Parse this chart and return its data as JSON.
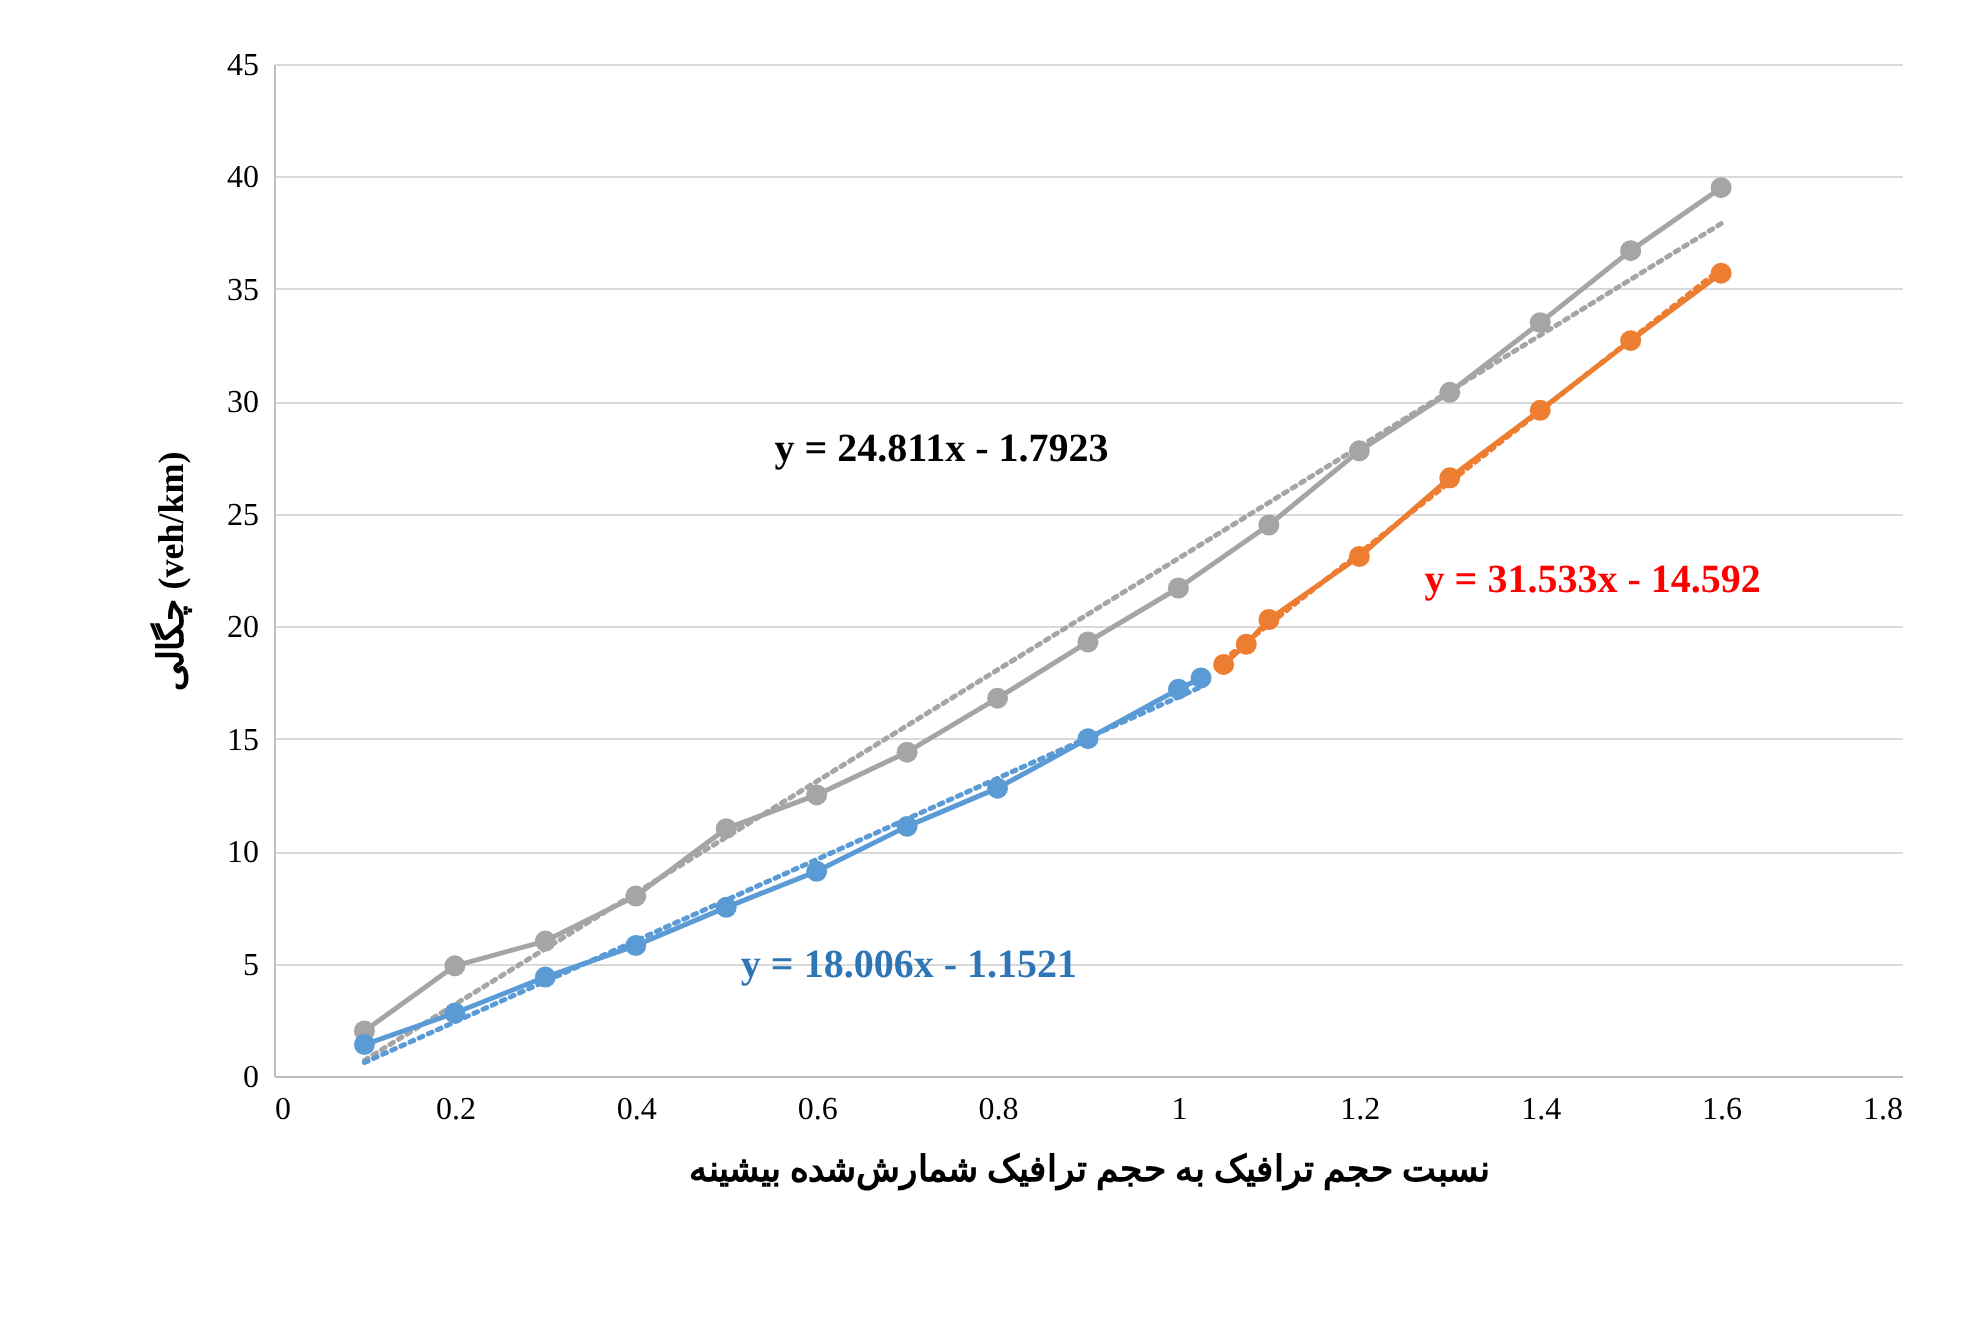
{
  "chart_data": {
    "type": "line",
    "xlabel": "نسبت حجم ترافیک به حجم ترافیک شمارش‌شده بیشینه",
    "ylabel": "چگالی (veh/km)",
    "x": [
      0.1,
      0.2,
      0.3,
      0.4,
      0.5,
      0.6,
      0.7,
      0.8,
      0.9,
      1.0,
      1.1,
      1.2,
      1.3,
      1.4,
      1.5,
      1.6
    ],
    "series": [
      {
        "color": "#a5a5a5",
        "marker": "circle",
        "values": [
          2.0,
          4.9,
          6.0,
          8.0,
          11.0,
          12.5,
          14.4,
          16.8,
          19.3,
          21.7,
          24.5,
          27.8,
          30.4,
          33.5,
          36.7,
          39.5
        ]
      },
      {
        "color": "#a5a5a5",
        "marker": "none",
        "line_style": "dotted",
        "x": [
          0.1,
          1.6
        ],
        "values": [
          0.7,
          37.9
        ]
      },
      {
        "color": "#5b9bd5",
        "marker": "circle",
        "x": [
          0.1,
          0.2,
          0.3,
          0.4,
          0.5,
          0.6,
          0.7,
          0.8,
          0.9,
          1.0,
          1.025
        ],
        "values": [
          1.4,
          2.8,
          4.4,
          5.8,
          7.5,
          9.1,
          11.1,
          12.8,
          15.0,
          17.2,
          17.7
        ]
      },
      {
        "color": "#5b9bd5",
        "marker": "none",
        "line_style": "dotted",
        "x": [
          0.1,
          1.025
        ],
        "values": [
          0.6,
          17.3
        ]
      },
      {
        "color": "#ed7d31",
        "marker": "circle",
        "x": [
          1.05,
          1.075,
          1.1,
          1.2,
          1.3,
          1.4,
          1.5,
          1.6
        ],
        "values": [
          18.3,
          19.2,
          20.3,
          23.1,
          26.6,
          29.6,
          32.7,
          35.7
        ]
      },
      {
        "color": "#ed7d31",
        "marker": "none",
        "line_style": "dotted",
        "x": [
          1.05,
          1.6
        ],
        "values": [
          18.5,
          35.9
        ]
      }
    ],
    "annotations": [
      "y = 24.811x - 1.7923",
      "y = 31.533x - 14.592",
      "y = 18.006x - 1.1521"
    ],
    "xlim": [
      0,
      1.8
    ],
    "xticks": [
      0,
      0.2,
      0.4,
      0.6,
      0.8,
      1,
      1.2,
      1.4,
      1.6,
      1.8
    ],
    "ylim": [
      0,
      45
    ],
    "yticks": [
      0,
      5,
      10,
      15,
      20,
      25,
      30,
      35,
      40,
      45
    ],
    "grid": "y"
  }
}
